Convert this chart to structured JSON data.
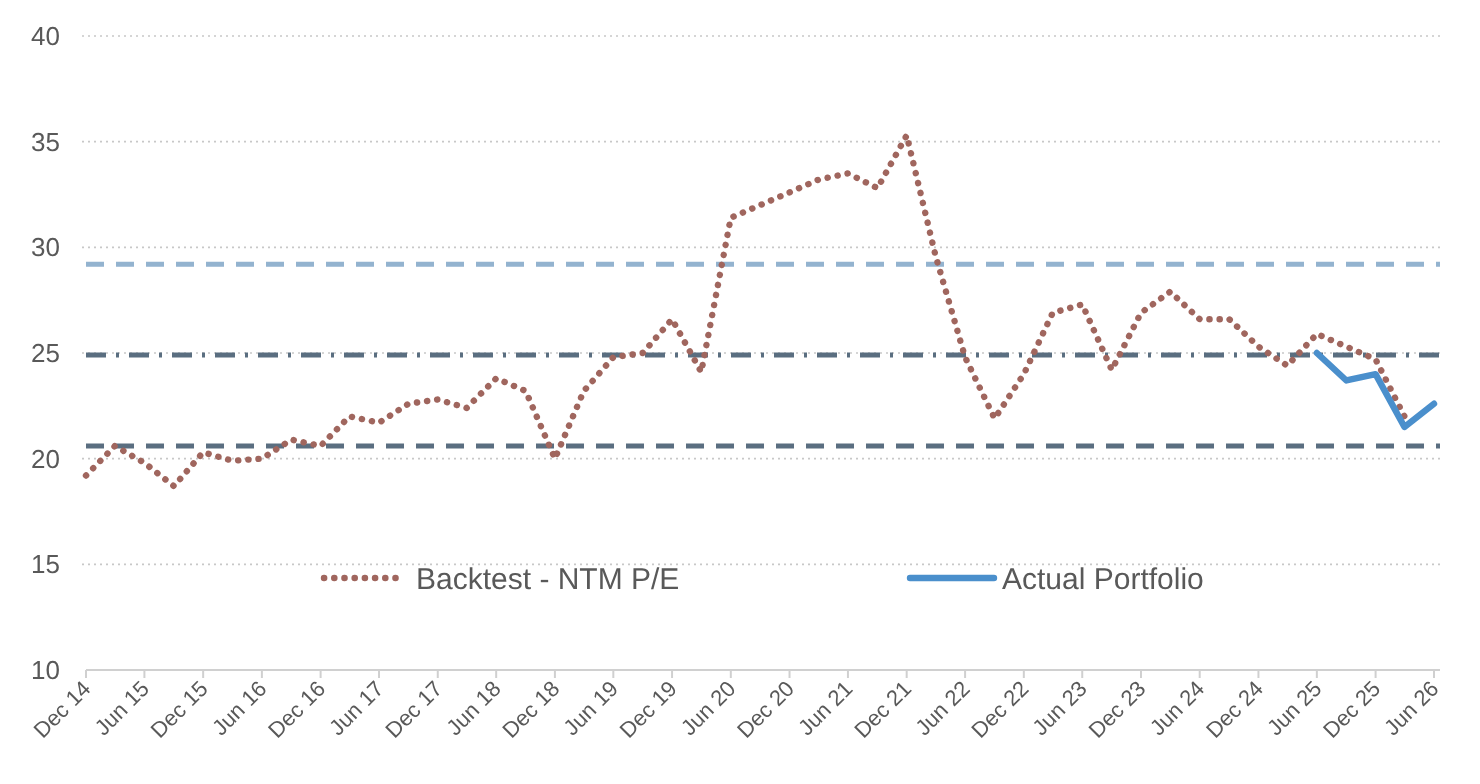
{
  "chart_data": {
    "type": "line",
    "xlim": [
      "2014-12",
      "2026-06"
    ],
    "xticks": [
      {
        "value": "2014-12",
        "label": "Dec 14"
      },
      {
        "value": "2015-06",
        "label": "Jun 15"
      },
      {
        "value": "2015-12",
        "label": "Dec 15"
      },
      {
        "value": "2016-06",
        "label": "Jun 16"
      },
      {
        "value": "2016-12",
        "label": "Dec 16"
      },
      {
        "value": "2017-06",
        "label": "Jun 17"
      },
      {
        "value": "2017-12",
        "label": "Dec 17"
      },
      {
        "value": "2018-06",
        "label": "Jun 18"
      },
      {
        "value": "2018-12",
        "label": "Dec 18"
      },
      {
        "value": "2019-06",
        "label": "Jun 19"
      },
      {
        "value": "2019-12",
        "label": "Dec 19"
      },
      {
        "value": "2020-06",
        "label": "Jun 20"
      },
      {
        "value": "2020-12",
        "label": "Dec 20"
      },
      {
        "value": "2021-06",
        "label": "Jun 21"
      },
      {
        "value": "2021-12",
        "label": "Dec 21"
      },
      {
        "value": "2022-06",
        "label": "Jun 22"
      },
      {
        "value": "2022-12",
        "label": "Dec 22"
      },
      {
        "value": "2023-06",
        "label": "Jun 23"
      },
      {
        "value": "2023-12",
        "label": "Dec 23"
      },
      {
        "value": "2024-06",
        "label": "Jun 24"
      },
      {
        "value": "2024-12",
        "label": "Dec 24"
      },
      {
        "value": "2025-06",
        "label": "Jun 25"
      },
      {
        "value": "2025-12",
        "label": "Dec 25"
      },
      {
        "value": "2026-06",
        "label": "Jun 26"
      }
    ],
    "ylim": [
      10,
      40
    ],
    "yticks": [
      10,
      15,
      20,
      25,
      30,
      35,
      40
    ],
    "grid": "y",
    "legend": "bottom",
    "series": [
      {
        "name": "Backtest - NTM P/E",
        "color": "#a0665e",
        "line_style": "dotted",
        "x": [
          "2014-12",
          "2015-03",
          "2015-06",
          "2015-09",
          "2015-12",
          "2016-03",
          "2016-06",
          "2016-09",
          "2016-12",
          "2017-03",
          "2017-06",
          "2017-09",
          "2017-12",
          "2018-03",
          "2018-06",
          "2018-09",
          "2018-12",
          "2019-03",
          "2019-06",
          "2019-09",
          "2019-12",
          "2020-03",
          "2020-06",
          "2020-09",
          "2020-12",
          "2021-03",
          "2021-06",
          "2021-09",
          "2021-12",
          "2022-03",
          "2022-06",
          "2022-09",
          "2022-12",
          "2023-03",
          "2023-06",
          "2023-09",
          "2023-12",
          "2024-03",
          "2024-06",
          "2024-09",
          "2024-12",
          "2025-03",
          "2025-06",
          "2025-09",
          "2025-12",
          "2026-03"
        ],
        "values": [
          19.2,
          20.6,
          19.8,
          18.7,
          20.3,
          19.9,
          20.0,
          20.9,
          20.6,
          22.0,
          21.7,
          22.6,
          22.8,
          22.4,
          23.8,
          23.2,
          20.0,
          23.2,
          24.8,
          25.0,
          26.6,
          24.1,
          31.4,
          32.0,
          32.6,
          33.2,
          33.5,
          32.8,
          35.3,
          29.6,
          24.8,
          21.9,
          24.0,
          26.9,
          27.3,
          24.2,
          26.9,
          27.9,
          26.6,
          26.6,
          25.3,
          24.4,
          25.9,
          25.3,
          24.7,
          22.0
        ]
      },
      {
        "name": "Actual Portfolio",
        "color": "#4a8fcc",
        "line_style": "solid",
        "x": [
          "2025-06",
          "2025-09",
          "2025-12",
          "2026-03",
          "2026-06"
        ],
        "values": [
          25.0,
          23.7,
          24.0,
          21.5,
          22.6
        ]
      }
    ],
    "ref_lines": [
      {
        "axis": "y",
        "value": 29.2,
        "color": "#93b3cf",
        "line_style": "dashed"
      },
      {
        "axis": "y",
        "value": 24.9,
        "color": "#5a6e80",
        "line_style": "dashdot"
      },
      {
        "axis": "y",
        "value": 20.6,
        "color": "#5a6e80",
        "line_style": "dashed"
      }
    ]
  }
}
